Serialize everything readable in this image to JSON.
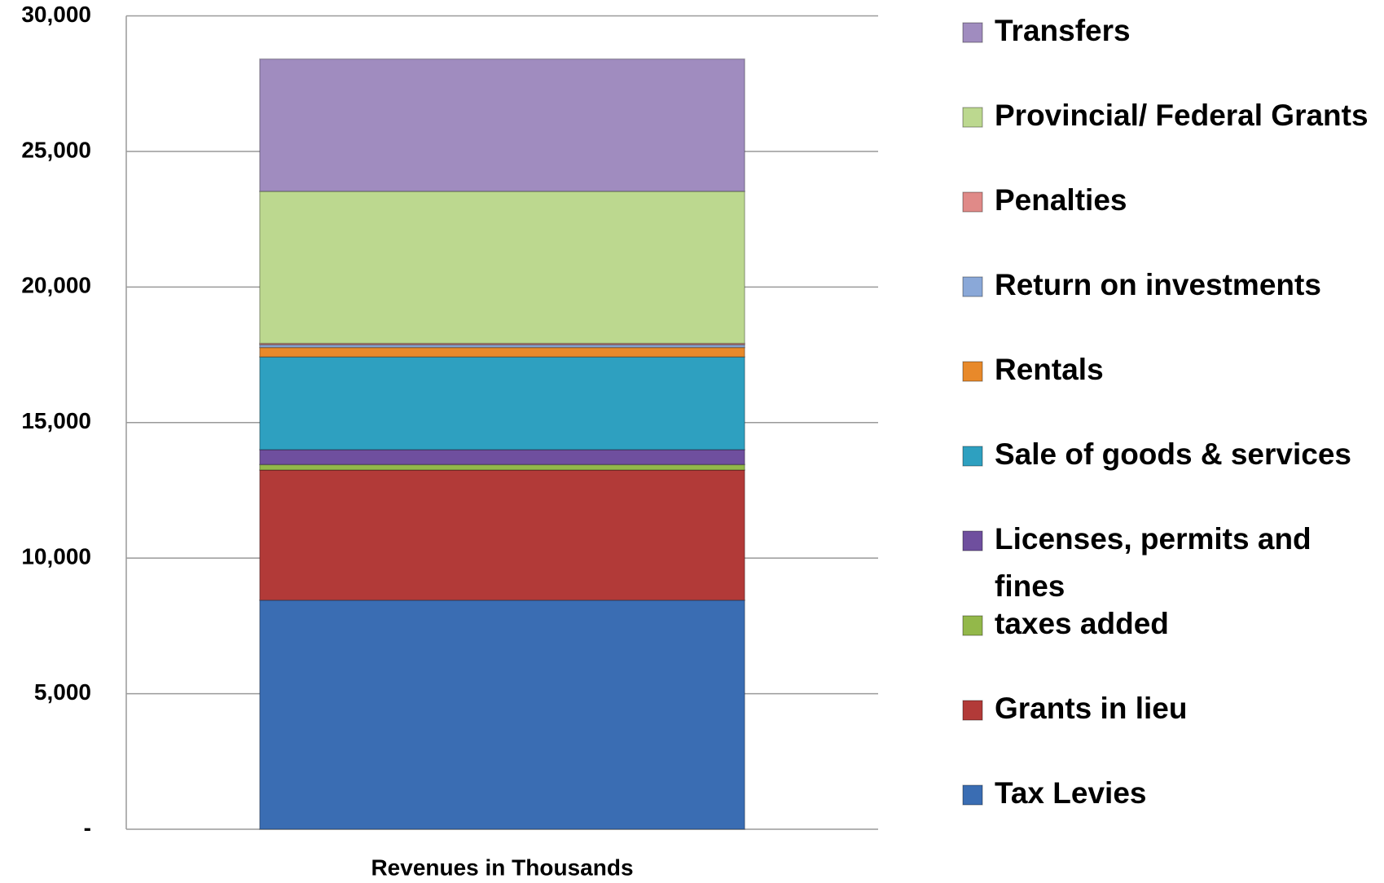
{
  "chart_data": {
    "type": "stacked_bar",
    "categories": [
      "Revenues in Thousands"
    ],
    "series": [
      {
        "name": "Tax Levies",
        "color": "#3a6db3",
        "values": [
          8450
        ]
      },
      {
        "name": "Grants in lieu",
        "color": "#b23a38",
        "values": [
          4800
        ]
      },
      {
        "name": "taxes added",
        "color": "#93b84a",
        "values": [
          200
        ]
      },
      {
        "name": "Licenses, permits and fines",
        "color": "#6f4f9e",
        "values": [
          550
        ]
      },
      {
        "name": "Sale of goods & services",
        "color": "#2ea0c0",
        "values": [
          3420
        ]
      },
      {
        "name": "Rentals",
        "color": "#e8892a",
        "values": [
          350
        ]
      },
      {
        "name": "Return on investments",
        "color": "#8aa8d8",
        "values": [
          100
        ]
      },
      {
        "name": "Penalties",
        "color": "#e08a88",
        "values": [
          50
        ]
      },
      {
        "name": "Provincial/ Federal Grants",
        "color": "#bcd88f",
        "values": [
          5610
        ]
      },
      {
        "name": "Transfers",
        "color": "#a08cbf",
        "values": [
          4880
        ]
      }
    ],
    "ylim": [
      0,
      30000
    ],
    "yticks": [
      {
        "value": 0,
        "label": "-"
      },
      {
        "value": 5000,
        "label": "5,000"
      },
      {
        "value": 10000,
        "label": "10,000"
      },
      {
        "value": 15000,
        "label": "15,000"
      },
      {
        "value": 20000,
        "label": "20,000"
      },
      {
        "value": 25000,
        "label": "25,000"
      },
      {
        "value": 30000,
        "label": "30,000"
      }
    ],
    "grid": true,
    "legend": "right"
  }
}
